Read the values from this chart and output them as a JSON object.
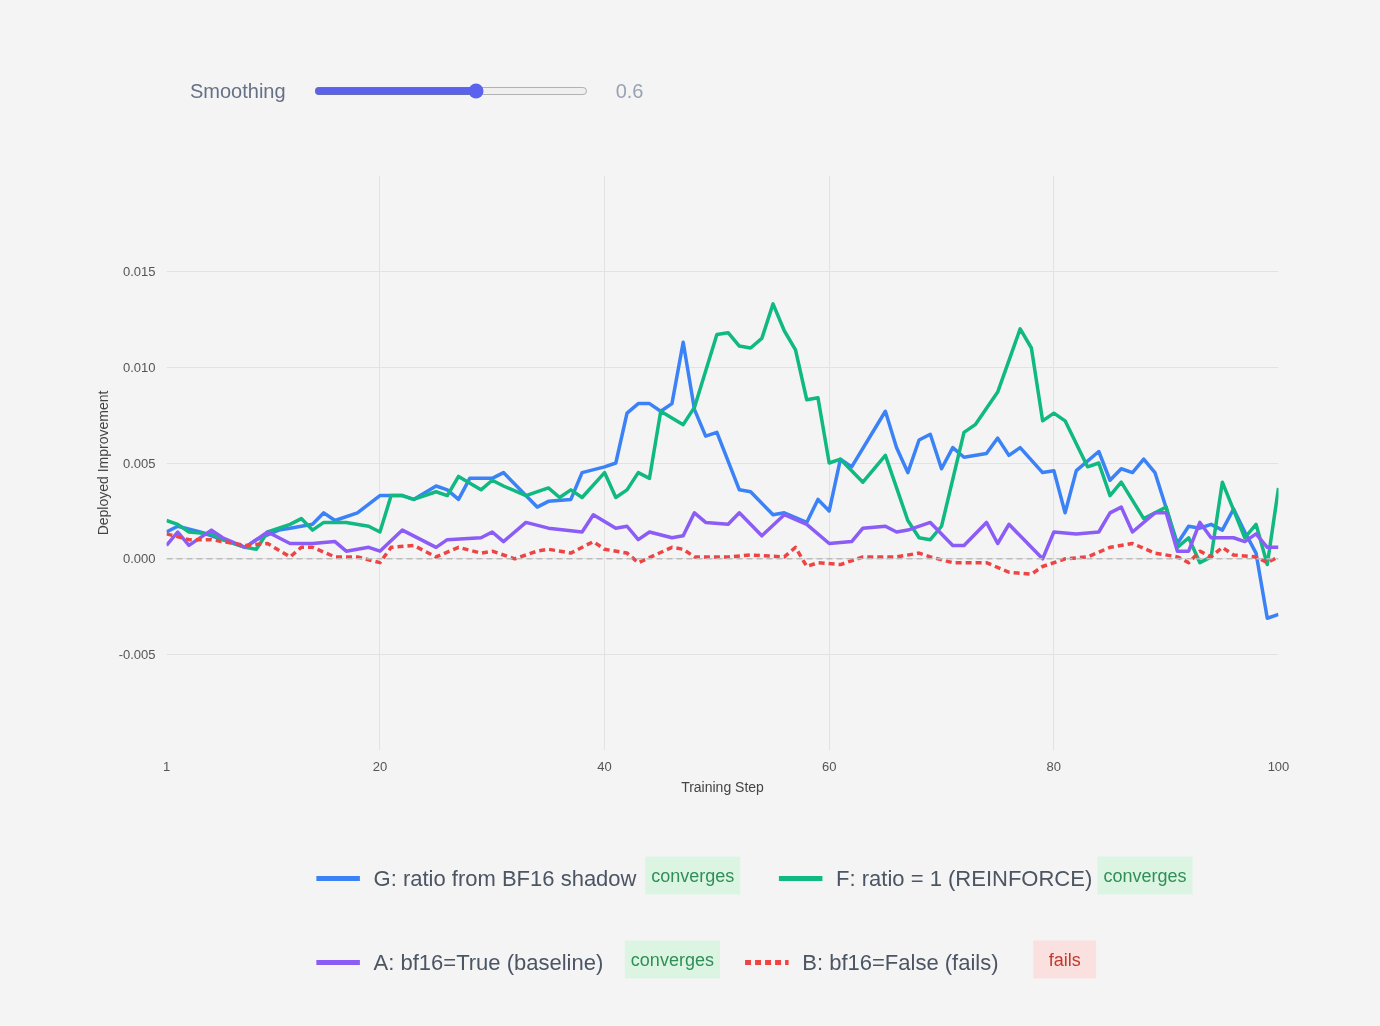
{
  "chart_data": {
    "type": "line",
    "xlabel": "Training Step",
    "ylabel": "Deployed Improvement",
    "xlim": [
      1,
      100
    ],
    "xticks": [
      1,
      20,
      40,
      60,
      80,
      100
    ],
    "ylim": [
      -0.01,
      0.02
    ],
    "yticks": [
      {
        "value": -0.005,
        "label": "-0.005"
      },
      {
        "value": 0,
        "label": "0.000"
      },
      {
        "value": 0.005,
        "label": "0.005"
      },
      {
        "value": 0.01,
        "label": "0.010"
      },
      {
        "value": 0.015,
        "label": "0.015"
      }
    ],
    "grid": true,
    "legend": "bottom",
    "marker": "none",
    "annotations": [
      "Smoothing",
      "0.6",
      "converges",
      "converges",
      "converges",
      "fails"
    ],
    "ref_lines": [
      {
        "axis": "y",
        "value": 0,
        "label": null,
        "color": "#bbbbbb",
        "line_style": "dashed"
      }
    ],
    "series": [
      {
        "name": "G: ratio from BF16 shadow",
        "color": "#3b82f6",
        "line_style": "solid",
        "x": [
          1,
          2,
          4,
          6,
          8,
          9,
          11,
          12,
          14,
          15,
          16,
          18,
          20,
          22,
          23,
          25,
          26,
          27,
          28,
          30,
          31,
          34,
          35,
          37,
          38,
          40,
          41,
          42,
          43,
          44,
          45,
          46,
          47,
          48,
          49,
          50,
          52,
          53,
          55,
          56,
          58,
          59,
          60,
          61,
          62,
          65,
          66,
          67,
          68,
          69,
          70,
          71,
          72,
          74,
          75,
          76,
          77,
          79,
          80,
          81,
          82,
          84,
          85,
          86,
          87,
          88,
          89,
          91,
          92,
          93,
          94,
          95,
          96,
          97,
          98,
          99,
          100
        ],
        "values": [
          0.0014,
          0.0017,
          0.0014,
          0.001,
          0.0006,
          0.001,
          0.0015,
          0.0016,
          0.0018,
          0.0024,
          0.002,
          0.0024,
          0.0033,
          0.0033,
          0.0031,
          0.0038,
          0.0036,
          0.0031,
          0.0042,
          0.0042,
          0.0045,
          0.0027,
          0.003,
          0.0031,
          0.0045,
          0.0048,
          0.005,
          0.0076,
          0.0081,
          0.0081,
          0.0077,
          0.0081,
          0.0113,
          0.0078,
          0.0064,
          0.0066,
          0.0036,
          0.0035,
          0.0023,
          0.0024,
          0.0019,
          0.0031,
          0.0025,
          0.0052,
          0.0048,
          0.0077,
          0.0058,
          0.0045,
          0.0062,
          0.0065,
          0.0047,
          0.0058,
          0.0053,
          0.0055,
          0.0063,
          0.0054,
          0.0058,
          0.0045,
          0.0046,
          0.0024,
          0.0046,
          0.0056,
          0.0041,
          0.0047,
          0.0045,
          0.0052,
          0.0045,
          0.0008,
          0.0017,
          0.0016,
          0.0018,
          0.0015,
          0.0026,
          0.0014,
          0.0003,
          -0.0031,
          -0.0029
        ]
      },
      {
        "name": "F: ratio = 1 (REINFORCE)",
        "color": "#10b981",
        "line_style": "solid",
        "x": [
          1,
          2,
          3,
          5,
          6,
          8,
          9,
          10,
          12,
          13,
          14,
          15,
          17,
          19,
          20,
          21,
          22,
          23,
          25,
          26,
          27,
          29,
          30,
          31,
          33,
          35,
          36,
          37,
          38,
          40,
          41,
          42,
          43,
          44,
          45,
          47,
          48,
          50,
          51,
          52,
          53,
          54,
          55,
          56,
          57,
          58,
          59,
          60,
          61,
          63,
          65,
          66,
          67,
          68,
          69,
          70,
          72,
          73,
          75,
          77,
          78,
          79,
          80,
          81,
          83,
          84,
          85,
          86,
          88,
          90,
          91,
          92,
          93,
          94,
          95,
          97,
          98,
          99,
          100
        ],
        "values": [
          0.002,
          0.0018,
          0.0014,
          0.0013,
          0.001,
          0.0006,
          0.0005,
          0.0014,
          0.0018,
          0.0021,
          0.0015,
          0.0019,
          0.0019,
          0.0017,
          0.0014,
          0.0033,
          0.0033,
          0.0031,
          0.0035,
          0.0033,
          0.0043,
          0.0036,
          0.0041,
          0.0038,
          0.0033,
          0.0037,
          0.0032,
          0.0036,
          0.0032,
          0.0045,
          0.0032,
          0.0036,
          0.0045,
          0.0042,
          0.0077,
          0.007,
          0.0079,
          0.0117,
          0.0118,
          0.0111,
          0.011,
          0.0115,
          0.0133,
          0.0119,
          0.0109,
          0.0083,
          0.0084,
          0.005,
          0.0052,
          0.004,
          0.0054,
          0.0037,
          0.002,
          0.0011,
          0.001,
          0.0017,
          0.0066,
          0.007,
          0.0087,
          0.012,
          0.011,
          0.0072,
          0.0076,
          0.0072,
          0.0048,
          0.005,
          0.0033,
          0.004,
          0.0021,
          0.0027,
          0.0006,
          0.0011,
          -0.0002,
          0.0001,
          0.004,
          0.0011,
          0.0018,
          -0.0003,
          0.0037
        ]
      },
      {
        "name": "A: bf16=True (baseline)",
        "color": "#8b5cf6",
        "line_style": "solid",
        "x": [
          1,
          2,
          3,
          5,
          6,
          8,
          10,
          12,
          14,
          16,
          17,
          19,
          20,
          22,
          25,
          26,
          29,
          30,
          31,
          33,
          35,
          38,
          39,
          41,
          42,
          43,
          44,
          46,
          47,
          48,
          49,
          51,
          52,
          54,
          56,
          58,
          60,
          62,
          63,
          65,
          66,
          67,
          69,
          71,
          72,
          74,
          75,
          76,
          79,
          80,
          82,
          84,
          85,
          86,
          87,
          89,
          90,
          91,
          92,
          93,
          94,
          96,
          97,
          98,
          99,
          100
        ],
        "values": [
          0.0007,
          0.0014,
          0.0007,
          0.0015,
          0.0011,
          0.0006,
          0.0014,
          0.0008,
          0.0008,
          0.0009,
          0.0004,
          0.0006,
          0.0004,
          0.0015,
          0.0006,
          0.001,
          0.0011,
          0.0014,
          0.0009,
          0.0019,
          0.0016,
          0.0014,
          0.0023,
          0.0016,
          0.0017,
          0.001,
          0.0014,
          0.0011,
          0.0012,
          0.0024,
          0.0019,
          0.0018,
          0.0024,
          0.0012,
          0.0023,
          0.0018,
          0.0008,
          0.0009,
          0.0016,
          0.0017,
          0.0014,
          0.0015,
          0.0019,
          0.0007,
          0.0007,
          0.0019,
          0.0008,
          0.0018,
          0,
          0.0014,
          0.0013,
          0.0014,
          0.0024,
          0.0027,
          0.0014,
          0.0024,
          0.0024,
          0.0004,
          0.0004,
          0.0019,
          0.0011,
          0.0011,
          0.0009,
          0.0013,
          0.0006,
          0.0006
        ]
      },
      {
        "name": "B: bf16=False (fails)",
        "color": "#ef4444",
        "line_style": "dashed",
        "x": [
          1,
          3,
          5,
          8,
          10,
          12,
          13,
          14,
          16,
          18,
          20,
          21,
          23,
          25,
          27,
          29,
          30,
          32,
          34,
          35,
          37,
          39,
          40,
          42,
          43,
          46,
          47,
          48,
          51,
          53,
          56,
          57,
          58,
          59,
          61,
          63,
          65,
          66,
          68,
          69,
          71,
          74,
          76,
          78,
          79,
          81,
          83,
          85,
          87,
          89,
          91,
          92,
          93,
          94,
          95,
          96,
          98,
          99,
          100
        ],
        "values": [
          0.0013,
          0.001,
          0.001,
          0.0007,
          0.0008,
          0.0001,
          0.0006,
          0.0006,
          0.0001,
          0.0001,
          -0.0002,
          0.0006,
          0.0007,
          0.0001,
          0.0006,
          0.0003,
          0.0004,
          0,
          0.0004,
          0.0005,
          0.0003,
          0.0009,
          0.0005,
          0.0003,
          -0.0002,
          0.0006,
          0.0005,
          0.0001,
          0.0001,
          0.0002,
          0.0001,
          0.0006,
          -0.0004,
          -0.0002,
          -0.0003,
          0.0001,
          0.0001,
          0.0001,
          0.0003,
          0.0001,
          -0.0002,
          -0.0002,
          -0.0007,
          -0.0008,
          -0.0004,
          0,
          0.0001,
          0.0006,
          0.0008,
          0.0003,
          0.0001,
          -0.0002,
          0.0004,
          0.0001,
          0.0006,
          0.0002,
          0.0001,
          -0.0002,
          0.0001
        ]
      }
    ]
  }
}
